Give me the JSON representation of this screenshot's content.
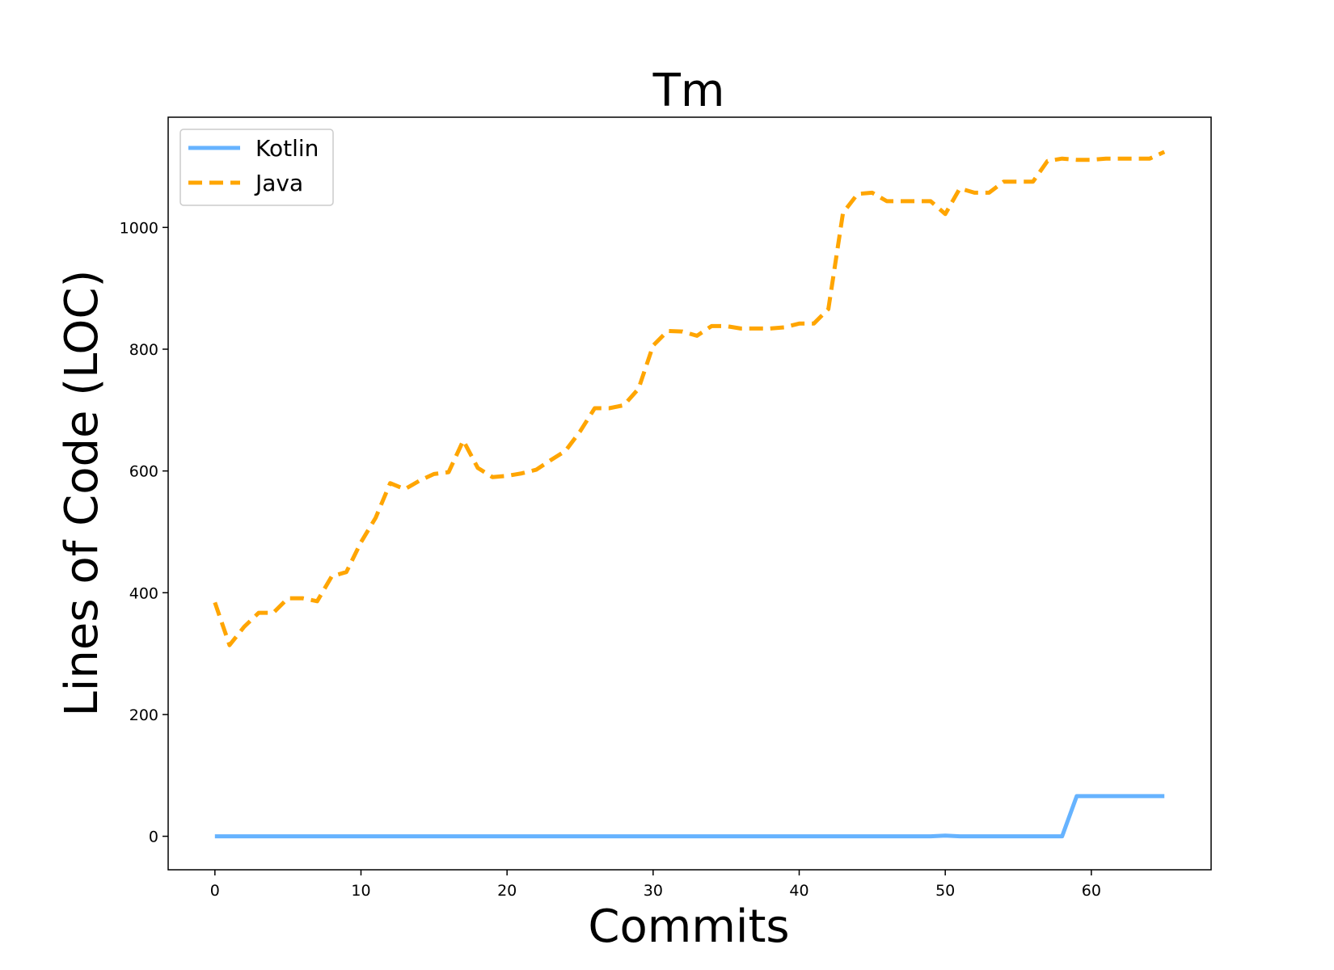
{
  "chart_data": {
    "type": "line",
    "title": "Tm",
    "xlabel": "Commits",
    "ylabel": "Lines of Code (LOC)",
    "xlim": [
      -3.2,
      68.2
    ],
    "ylim": [
      -55,
      1181
    ],
    "xticks": [
      0,
      10,
      20,
      30,
      40,
      50,
      60
    ],
    "yticks": [
      0,
      200,
      400,
      600,
      800,
      1000
    ],
    "grid": false,
    "legend_position": "top-left",
    "series": [
      {
        "name": "Kotlin",
        "color": "#66b3ff",
        "line_style": "solid",
        "x": [
          0,
          1,
          2,
          3,
          4,
          5,
          6,
          7,
          8,
          9,
          10,
          11,
          12,
          13,
          14,
          15,
          16,
          17,
          18,
          19,
          20,
          21,
          22,
          23,
          24,
          25,
          26,
          27,
          28,
          29,
          30,
          31,
          32,
          33,
          34,
          35,
          36,
          37,
          38,
          39,
          40,
          41,
          42,
          43,
          44,
          45,
          46,
          47,
          48,
          49,
          50,
          51,
          52,
          53,
          54,
          55,
          56,
          57,
          58,
          59,
          60,
          61,
          62,
          63,
          64,
          65
        ],
        "values": [
          0,
          0,
          0,
          0,
          0,
          0,
          0,
          0,
          0,
          0,
          0,
          0,
          0,
          0,
          0,
          0,
          0,
          0,
          0,
          0,
          0,
          0,
          0,
          0,
          0,
          0,
          0,
          0,
          0,
          0,
          0,
          0,
          0,
          0,
          0,
          0,
          0,
          0,
          0,
          0,
          0,
          0,
          0,
          0,
          0,
          0,
          0,
          0,
          0,
          0,
          1,
          0,
          0,
          0,
          0,
          0,
          0,
          0,
          0,
          66,
          66,
          66,
          66,
          66,
          66,
          66
        ]
      },
      {
        "name": "Java",
        "color": "#ffa500",
        "line_style": "dashed",
        "x": [
          0,
          1,
          2,
          3,
          4,
          5,
          6,
          7,
          8,
          9,
          10,
          11,
          12,
          13,
          14,
          15,
          16,
          17,
          18,
          19,
          20,
          21,
          22,
          23,
          24,
          25,
          26,
          27,
          28,
          29,
          30,
          31,
          32,
          33,
          34,
          35,
          36,
          37,
          38,
          39,
          40,
          41,
          42,
          43,
          44,
          45,
          46,
          47,
          48,
          49,
          50,
          51,
          52,
          53,
          54,
          55,
          56,
          57,
          58,
          59,
          60,
          61,
          62,
          63,
          64,
          65
        ],
        "values": [
          384,
          314,
          344,
          367,
          367,
          391,
          391,
          386,
          427,
          434,
          483,
          523,
          580,
          570,
          584,
          595,
          598,
          650,
          605,
          590,
          592,
          596,
          602,
          618,
          633,
          665,
          703,
          703,
          708,
          735,
          806,
          830,
          829,
          822,
          838,
          838,
          834,
          834,
          834,
          836,
          842,
          842,
          866,
          1024,
          1055,
          1057,
          1043,
          1043,
          1043,
          1043,
          1022,
          1064,
          1057,
          1057,
          1075,
          1075,
          1075,
          1109,
          1113,
          1111,
          1111,
          1113,
          1113,
          1113,
          1113,
          1124
        ]
      }
    ]
  }
}
